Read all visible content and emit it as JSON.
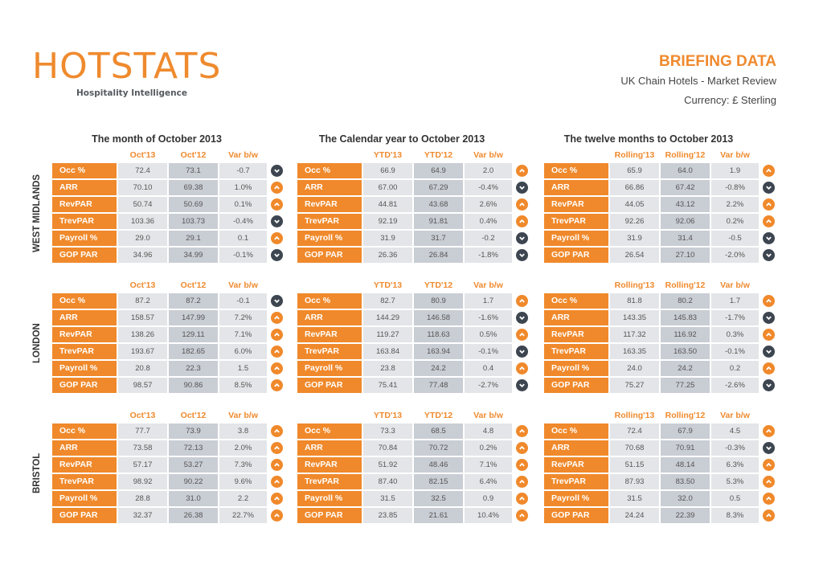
{
  "logo": {
    "word": "HOTSTATS",
    "tagline": "Hospitality Intelligence"
  },
  "header": {
    "title": "BRIEFING DATA",
    "subtitle": "UK Chain Hotels - Market Review",
    "currency": "Currency: £ Sterling"
  },
  "colors": {
    "orange": "#f0892b",
    "dark": "#3d4650"
  },
  "periods": [
    {
      "title": "The month of October 2013",
      "headers": [
        "Oct'13",
        "Oct'12",
        "Var b/w"
      ]
    },
    {
      "title": "The Calendar year to October 2013",
      "headers": [
        "YTD'13",
        "YTD'12",
        "Var b/w"
      ]
    },
    {
      "title": "The twelve months to October 2013",
      "headers": [
        "Rolling'13",
        "Rolling'12",
        "Var b/w"
      ]
    }
  ],
  "regions": [
    {
      "name": "WEST MIDLANDS",
      "tables": [
        {
          "rows": [
            {
              "metric": "Occ %",
              "cur": "72.4",
              "prev": "73.1",
              "var": "-0.7",
              "trend": "down"
            },
            {
              "metric": "ARR",
              "cur": "70.10",
              "prev": "69.38",
              "var": "1.0%",
              "trend": "up"
            },
            {
              "metric": "RevPAR",
              "cur": "50.74",
              "prev": "50.69",
              "var": "0.1%",
              "trend": "up"
            },
            {
              "metric": "TrevPAR",
              "cur": "103.36",
              "prev": "103.73",
              "var": "-0.4%",
              "trend": "down"
            },
            {
              "metric": "Payroll %",
              "cur": "29.0",
              "prev": "29.1",
              "var": "0.1",
              "trend": "up"
            },
            {
              "metric": "GOP PAR",
              "cur": "34.96",
              "prev": "34.99",
              "var": "-0.1%",
              "trend": "down"
            }
          ]
        },
        {
          "rows": [
            {
              "metric": "Occ %",
              "cur": "66.9",
              "prev": "64.9",
              "var": "2.0",
              "trend": "up"
            },
            {
              "metric": "ARR",
              "cur": "67.00",
              "prev": "67.29",
              "var": "-0.4%",
              "trend": "down"
            },
            {
              "metric": "RevPAR",
              "cur": "44.81",
              "prev": "43.68",
              "var": "2.6%",
              "trend": "up"
            },
            {
              "metric": "TrevPAR",
              "cur": "92.19",
              "prev": "91.81",
              "var": "0.4%",
              "trend": "up"
            },
            {
              "metric": "Payroll %",
              "cur": "31.9",
              "prev": "31.7",
              "var": "-0.2",
              "trend": "down"
            },
            {
              "metric": "GOP PAR",
              "cur": "26.36",
              "prev": "26.84",
              "var": "-1.8%",
              "trend": "down"
            }
          ]
        },
        {
          "rows": [
            {
              "metric": "Occ %",
              "cur": "65.9",
              "prev": "64.0",
              "var": "1.9",
              "trend": "up"
            },
            {
              "metric": "ARR",
              "cur": "66.86",
              "prev": "67.42",
              "var": "-0.8%",
              "trend": "down"
            },
            {
              "metric": "RevPAR",
              "cur": "44.05",
              "prev": "43.12",
              "var": "2.2%",
              "trend": "up"
            },
            {
              "metric": "TrevPAR",
              "cur": "92.26",
              "prev": "92.06",
              "var": "0.2%",
              "trend": "up"
            },
            {
              "metric": "Payroll %",
              "cur": "31.9",
              "prev": "31.4",
              "var": "-0.5",
              "trend": "down"
            },
            {
              "metric": "GOP PAR",
              "cur": "26.54",
              "prev": "27.10",
              "var": "-2.0%",
              "trend": "down"
            }
          ]
        }
      ]
    },
    {
      "name": "LONDON",
      "tables": [
        {
          "rows": [
            {
              "metric": "Occ %",
              "cur": "87.2",
              "prev": "87.2",
              "var": "-0.1",
              "trend": "down"
            },
            {
              "metric": "ARR",
              "cur": "158.57",
              "prev": "147.99",
              "var": "7.2%",
              "trend": "up"
            },
            {
              "metric": "RevPAR",
              "cur": "138.26",
              "prev": "129.11",
              "var": "7.1%",
              "trend": "up"
            },
            {
              "metric": "TrevPAR",
              "cur": "193.67",
              "prev": "182.65",
              "var": "6.0%",
              "trend": "up"
            },
            {
              "metric": "Payroll %",
              "cur": "20.8",
              "prev": "22.3",
              "var": "1.5",
              "trend": "up"
            },
            {
              "metric": "GOP PAR",
              "cur": "98.57",
              "prev": "90.86",
              "var": "8.5%",
              "trend": "up"
            }
          ]
        },
        {
          "rows": [
            {
              "metric": "Occ %",
              "cur": "82.7",
              "prev": "80.9",
              "var": "1.7",
              "trend": "up"
            },
            {
              "metric": "ARR",
              "cur": "144.29",
              "prev": "146.58",
              "var": "-1.6%",
              "trend": "down"
            },
            {
              "metric": "RevPAR",
              "cur": "119.27",
              "prev": "118.63",
              "var": "0.5%",
              "trend": "up"
            },
            {
              "metric": "TrevPAR",
              "cur": "163.84",
              "prev": "163.94",
              "var": "-0.1%",
              "trend": "down"
            },
            {
              "metric": "Payroll %",
              "cur": "23.8",
              "prev": "24.2",
              "var": "0.4",
              "trend": "up"
            },
            {
              "metric": "GOP PAR",
              "cur": "75.41",
              "prev": "77.48",
              "var": "-2.7%",
              "trend": "down"
            }
          ]
        },
        {
          "rows": [
            {
              "metric": "Occ %",
              "cur": "81.8",
              "prev": "80.2",
              "var": "1.7",
              "trend": "up"
            },
            {
              "metric": "ARR",
              "cur": "143.35",
              "prev": "145.83",
              "var": "-1.7%",
              "trend": "down"
            },
            {
              "metric": "RevPAR",
              "cur": "117.32",
              "prev": "116.92",
              "var": "0.3%",
              "trend": "up"
            },
            {
              "metric": "TrevPAR",
              "cur": "163.35",
              "prev": "163.50",
              "var": "-0.1%",
              "trend": "down"
            },
            {
              "metric": "Payroll %",
              "cur": "24.0",
              "prev": "24.2",
              "var": "0.2",
              "trend": "up"
            },
            {
              "metric": "GOP PAR",
              "cur": "75.27",
              "prev": "77.25",
              "var": "-2.6%",
              "trend": "down"
            }
          ]
        }
      ]
    },
    {
      "name": "BRISTOL",
      "tables": [
        {
          "rows": [
            {
              "metric": "Occ %",
              "cur": "77.7",
              "prev": "73.9",
              "var": "3.8",
              "trend": "up"
            },
            {
              "metric": "ARR",
              "cur": "73.58",
              "prev": "72.13",
              "var": "2.0%",
              "trend": "up"
            },
            {
              "metric": "RevPAR",
              "cur": "57.17",
              "prev": "53.27",
              "var": "7.3%",
              "trend": "up"
            },
            {
              "metric": "TrevPAR",
              "cur": "98.92",
              "prev": "90.22",
              "var": "9.6%",
              "trend": "up"
            },
            {
              "metric": "Payroll %",
              "cur": "28.8",
              "prev": "31.0",
              "var": "2.2",
              "trend": "up"
            },
            {
              "metric": "GOP PAR",
              "cur": "32.37",
              "prev": "26.38",
              "var": "22.7%",
              "trend": "up"
            }
          ]
        },
        {
          "rows": [
            {
              "metric": "Occ %",
              "cur": "73.3",
              "prev": "68.5",
              "var": "4.8",
              "trend": "up"
            },
            {
              "metric": "ARR",
              "cur": "70.84",
              "prev": "70.72",
              "var": "0.2%",
              "trend": "up"
            },
            {
              "metric": "RevPAR",
              "cur": "51.92",
              "prev": "48.46",
              "var": "7.1%",
              "trend": "up"
            },
            {
              "metric": "TrevPAR",
              "cur": "87.40",
              "prev": "82.15",
              "var": "6.4%",
              "trend": "up"
            },
            {
              "metric": "Payroll %",
              "cur": "31.5",
              "prev": "32.5",
              "var": "0.9",
              "trend": "up"
            },
            {
              "metric": "GOP PAR",
              "cur": "23.85",
              "prev": "21.61",
              "var": "10.4%",
              "trend": "up"
            }
          ]
        },
        {
          "rows": [
            {
              "metric": "Occ %",
              "cur": "72.4",
              "prev": "67.9",
              "var": "4.5",
              "trend": "up"
            },
            {
              "metric": "ARR",
              "cur": "70.68",
              "prev": "70.91",
              "var": "-0.3%",
              "trend": "down"
            },
            {
              "metric": "RevPAR",
              "cur": "51.15",
              "prev": "48.14",
              "var": "6.3%",
              "trend": "up"
            },
            {
              "metric": "TrevPAR",
              "cur": "87.93",
              "prev": "83.50",
              "var": "5.3%",
              "trend": "up"
            },
            {
              "metric": "Payroll %",
              "cur": "31.5",
              "prev": "32.0",
              "var": "0.5",
              "trend": "up"
            },
            {
              "metric": "GOP PAR",
              "cur": "24.24",
              "prev": "22.39",
              "var": "8.3%",
              "trend": "up"
            }
          ]
        }
      ]
    }
  ]
}
